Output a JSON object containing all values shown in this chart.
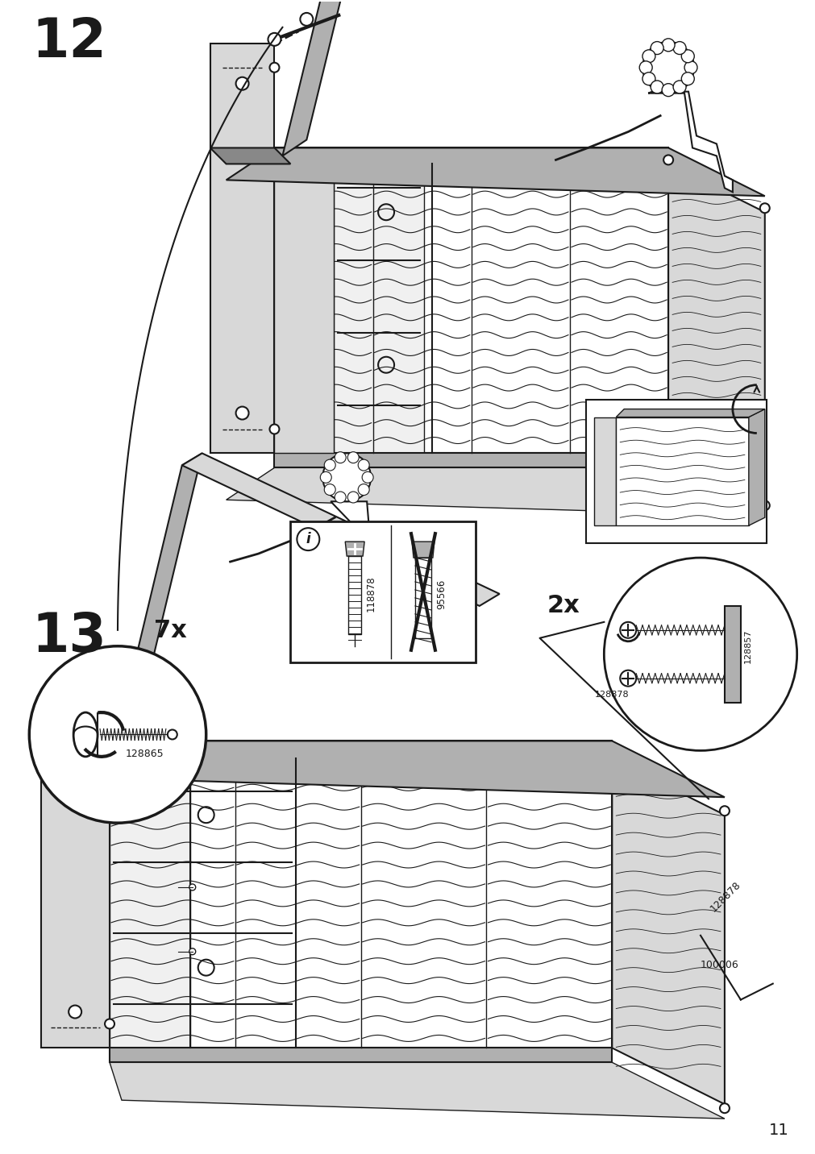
{
  "page_number": "11",
  "step1_number": "12",
  "step2_number": "13",
  "step1_multiplier": "7x",
  "step2_multiplier": "2x",
  "part_id_screw1": "128865",
  "part_id_screw2": "128878",
  "part_id_bracket": "128857",
  "part_id_tool": "100006",
  "part_id_wrong": "95566",
  "part_id_good": "118878",
  "background_color": "#ffffff",
  "line_color": "#1a1a1a",
  "gray_dark": "#888888",
  "gray_mid": "#b0b0b0",
  "gray_light": "#d8d8d8",
  "gray_verylite": "#f0f0f0",
  "figure_width": 10.12,
  "figure_height": 14.32,
  "dpi": 100
}
